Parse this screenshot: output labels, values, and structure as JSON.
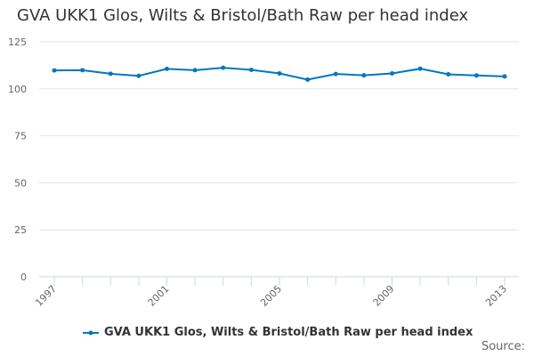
{
  "chart_data": {
    "type": "line",
    "title": "GVA UKK1 Glos, Wilts & Bristol/Bath Raw per head index",
    "xlabel": "",
    "ylabel": "",
    "x": [
      1997,
      1998,
      1999,
      2000,
      2001,
      2002,
      2003,
      2004,
      2005,
      2006,
      2007,
      2008,
      2009,
      2010,
      2011,
      2012,
      2013
    ],
    "x_tick_labels": [
      "1997",
      "2001",
      "2005",
      "2009",
      "2013"
    ],
    "y_tick_labels": [
      "0",
      "25",
      "50",
      "75",
      "100",
      "125"
    ],
    "ylim": [
      0,
      125
    ],
    "grid": true,
    "legend_position": "bottom",
    "series": [
      {
        "name": "GVA UKK1 Glos, Wilts & Bristol/Bath Raw per head index",
        "color": "#0077c0",
        "values": [
          109.8,
          109.9,
          108.0,
          106.9,
          110.6,
          109.9,
          111.2,
          110.1,
          108.2,
          104.9,
          107.9,
          107.2,
          108.2,
          110.7,
          107.7,
          107.1,
          106.6
        ]
      }
    ]
  },
  "source_label": "Source:"
}
